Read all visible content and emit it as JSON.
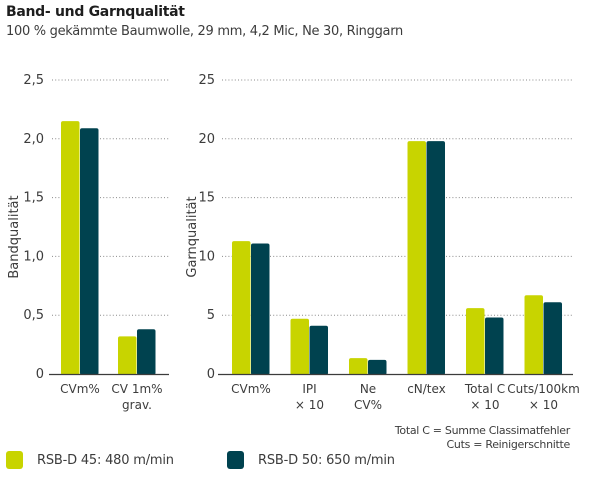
{
  "title": "Band- und Garnqualität",
  "subtitle": "100 % gekämmte Baumwolle, 29 mm, 4,2 Mic, Ne 30, Ringgarn",
  "colors": {
    "series1": "#c8d400",
    "series2": "#00424f",
    "grid": "#8a8a8a",
    "axis": "#3c3c3c"
  },
  "legend": [
    {
      "label": "RSB-D 45: 480 m/min",
      "color": "#c8d400"
    },
    {
      "label": "RSB-D 50: 650 m/min",
      "color": "#00424f"
    }
  ],
  "notes": [
    "Total C = Summe Classimatfehler",
    "Cuts = Reinigerschnitte"
  ],
  "chart_data": [
    {
      "type": "bar",
      "title": "",
      "ylabel": "Bandqualität",
      "xlabel": "",
      "ylim": [
        0,
        2.5
      ],
      "yticks": [
        0,
        0.5,
        1.0,
        1.5,
        2.0,
        2.5
      ],
      "ytick_labels": [
        "0",
        "0,5",
        "1,0",
        "1,5",
        "2,0",
        "2,5"
      ],
      "grid": true,
      "categories": [
        [
          "CVm%"
        ],
        [
          "CV 1m%",
          "grav."
        ]
      ],
      "series": [
        {
          "name": "RSB-D 45: 480 m/min",
          "values": [
            2.15,
            0.32
          ]
        },
        {
          "name": "RSB-D 50: 650 m/min",
          "values": [
            2.09,
            0.38
          ]
        }
      ]
    },
    {
      "type": "bar",
      "title": "",
      "ylabel": "Garnqualität",
      "xlabel": "",
      "ylim": [
        0,
        25
      ],
      "yticks": [
        0,
        5,
        10,
        15,
        20,
        25
      ],
      "ytick_labels": [
        "0",
        "5",
        "10",
        "15",
        "20",
        "25"
      ],
      "grid": true,
      "categories": [
        [
          "CVm%"
        ],
        [
          "IPI",
          "× 10"
        ],
        [
          "Ne",
          "CV%"
        ],
        [
          "cN/tex"
        ],
        [
          "Total C",
          "× 10"
        ],
        [
          "Cuts/100km",
          "× 10"
        ]
      ],
      "series": [
        {
          "name": "RSB-D 45: 480 m/min",
          "values": [
            11.3,
            4.7,
            1.35,
            19.8,
            5.6,
            6.7
          ]
        },
        {
          "name": "RSB-D 50: 650 m/min",
          "values": [
            11.1,
            4.1,
            1.2,
            19.8,
            4.8,
            6.1
          ]
        }
      ]
    }
  ]
}
